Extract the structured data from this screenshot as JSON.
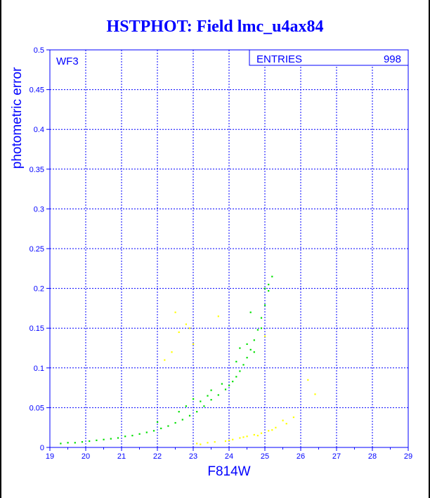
{
  "chart_data": {
    "type": "scatter",
    "title": "HSTPHOT: Field lmc_u4ax84",
    "xlabel": "F814W",
    "ylabel": "photometric error",
    "xlim": [
      19,
      29
    ],
    "ylim": [
      0,
      0.5
    ],
    "x_ticks": [
      "19",
      "20",
      "21",
      "22",
      "23",
      "24",
      "25",
      "26",
      "27",
      "28",
      "29"
    ],
    "y_ticks": [
      "0",
      "0.05",
      "0.1",
      "0.15",
      "0.2",
      "0.25",
      "0.3",
      "0.35",
      "0.4",
      "0.45",
      "0.5"
    ],
    "grid": true,
    "corner_label": "WF3",
    "stats_box": {
      "label": "ENTRIES",
      "value": "998"
    },
    "colors": {
      "title": "#0000ff",
      "axes": "#0000ff",
      "series_main": "#00e000",
      "series_secondary": "#ffff00"
    },
    "series": [
      {
        "color": "#00e000",
        "x": [
          19.3,
          19.5,
          19.7,
          19.9,
          20.1,
          20.3,
          20.5,
          20.7,
          20.9,
          21.1,
          21.3,
          21.5,
          21.7,
          21.9,
          22.1,
          22.3,
          22.5,
          22.7,
          22.9,
          23.1,
          23.3,
          23.5,
          23.7,
          23.9,
          24.0,
          24.1,
          24.2,
          24.3,
          24.4,
          24.5,
          24.6,
          24.7,
          24.8,
          24.9,
          25.0,
          25.1,
          25.2,
          22.0,
          22.6,
          23.0,
          23.5,
          23.8,
          24.2,
          24.5,
          24.7,
          24.9,
          25.0,
          22.8,
          23.4,
          24.3,
          24.6,
          25.1,
          23.2
        ],
        "y": [
          0.005,
          0.006,
          0.006,
          0.007,
          0.008,
          0.009,
          0.01,
          0.011,
          0.012,
          0.014,
          0.015,
          0.017,
          0.019,
          0.021,
          0.024,
          0.027,
          0.031,
          0.035,
          0.04,
          0.045,
          0.052,
          0.06,
          0.066,
          0.073,
          0.078,
          0.083,
          0.089,
          0.096,
          0.104,
          0.113,
          0.123,
          0.135,
          0.148,
          0.163,
          0.179,
          0.197,
          0.215,
          0.032,
          0.045,
          0.061,
          0.072,
          0.08,
          0.108,
          0.13,
          0.12,
          0.15,
          0.2,
          0.052,
          0.065,
          0.125,
          0.17,
          0.205,
          0.058
        ]
      },
      {
        "color": "#ffff00",
        "x": [
          22.2,
          22.5,
          22.6,
          22.8,
          23.0,
          23.1,
          23.4,
          23.6,
          23.9,
          24.1,
          24.3,
          24.5,
          24.7,
          24.9,
          25.1,
          25.3,
          25.6,
          25.8,
          26.2,
          26.4,
          22.4,
          22.9,
          23.7,
          25.0,
          25.5,
          23.2,
          24.0,
          24.4,
          24.8,
          25.2
        ],
        "y": [
          0.11,
          0.17,
          0.145,
          0.155,
          0.13,
          0.005,
          0.006,
          0.007,
          0.008,
          0.01,
          0.012,
          0.014,
          0.016,
          0.018,
          0.021,
          0.025,
          0.03,
          0.038,
          0.085,
          0.067,
          0.12,
          0.15,
          0.165,
          0.14,
          0.034,
          0.004,
          0.009,
          0.013,
          0.015,
          0.022
        ]
      }
    ]
  }
}
